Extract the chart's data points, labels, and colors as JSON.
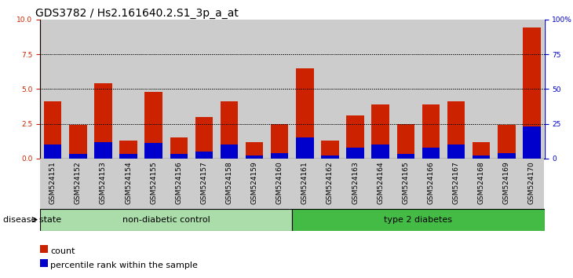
{
  "title": "GDS3782 / Hs2.161640.2.S1_3p_a_at",
  "samples": [
    "GSM524151",
    "GSM524152",
    "GSM524153",
    "GSM524154",
    "GSM524155",
    "GSM524156",
    "GSM524157",
    "GSM524158",
    "GSM524159",
    "GSM524160",
    "GSM524161",
    "GSM524162",
    "GSM524163",
    "GSM524164",
    "GSM524165",
    "GSM524166",
    "GSM524167",
    "GSM524168",
    "GSM524169",
    "GSM524170"
  ],
  "count_values": [
    4.1,
    2.4,
    5.4,
    1.3,
    4.8,
    1.5,
    3.0,
    4.1,
    1.2,
    2.5,
    6.5,
    1.3,
    3.1,
    3.9,
    2.5,
    3.9,
    4.1,
    1.2,
    2.4,
    9.4
  ],
  "percentile_values": [
    1.0,
    0.3,
    1.2,
    0.3,
    1.1,
    0.3,
    0.5,
    1.0,
    0.2,
    0.4,
    1.5,
    0.2,
    0.8,
    1.0,
    0.3,
    0.8,
    1.0,
    0.2,
    0.4,
    2.3
  ],
  "non_diabetic_count": 10,
  "type2_diabetes_count": 10,
  "non_diabetic_color": "#aaddaa",
  "type2_diabetes_color": "#44bb44",
  "count_color": "#CC2200",
  "percentile_color": "#0000CC",
  "ylim_left": [
    0,
    10
  ],
  "ylim_right": [
    0,
    100
  ],
  "yticks_left": [
    0,
    2.5,
    5.0,
    7.5,
    10
  ],
  "yticks_right": [
    0,
    25,
    50,
    75,
    100
  ],
  "grid_lines": [
    2.5,
    5.0,
    7.5
  ],
  "title_fontsize": 10,
  "tick_fontsize": 6.5,
  "label_fontsize": 8,
  "disease_state_label": "disease state",
  "group1_label": "non-diabetic control",
  "group2_label": "type 2 diabetes",
  "legend_count": "count",
  "legend_percentile": "percentile rank within the sample"
}
